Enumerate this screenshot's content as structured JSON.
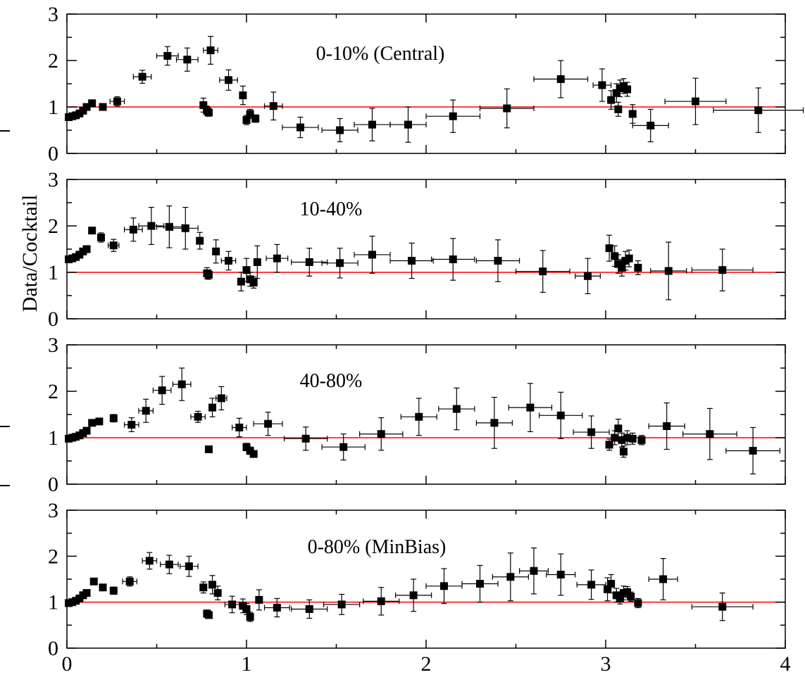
{
  "figure": {
    "ylabel": "Data/Cocktail"
  },
  "chart_data": [
    {
      "type": "scatter",
      "title": "0-10% (Central)",
      "xlim": [
        0,
        4
      ],
      "ylim": [
        0,
        3
      ],
      "yticks": [
        "0",
        "1",
        "2",
        "3"
      ],
      "reference_line": 1,
      "reference_color": "#ff0000",
      "points": [
        [
          0.01,
          0.78,
          0.04
        ],
        [
          0.03,
          0.8,
          0.04
        ],
        [
          0.05,
          0.82,
          0.04
        ],
        [
          0.07,
          0.86,
          0.04
        ],
        [
          0.09,
          0.92,
          0.05
        ],
        [
          0.11,
          1.0,
          0.06
        ],
        [
          0.14,
          1.08,
          0.06
        ],
        [
          0.2,
          1.0,
          0.07
        ],
        [
          0.28,
          1.12,
          0.1
        ],
        [
          0.42,
          1.65,
          0.14
        ],
        [
          0.56,
          2.1,
          0.2
        ],
        [
          0.67,
          2.02,
          0.25
        ],
        [
          0.8,
          2.22,
          0.3
        ],
        [
          0.76,
          1.04,
          0.15
        ],
        [
          0.78,
          0.92,
          0.1
        ],
        [
          0.79,
          0.88,
          0.08
        ],
        [
          0.9,
          1.58,
          0.22
        ],
        [
          0.98,
          1.25,
          0.2
        ],
        [
          1.0,
          0.72,
          0.1
        ],
        [
          1.02,
          0.85,
          0.1
        ],
        [
          1.05,
          0.75,
          0.08
        ],
        [
          1.15,
          1.02,
          0.3
        ],
        [
          1.3,
          0.56,
          0.22
        ],
        [
          1.52,
          0.5,
          0.25
        ],
        [
          1.7,
          0.62,
          0.35
        ],
        [
          1.9,
          0.62,
          0.38
        ],
        [
          2.15,
          0.8,
          0.35
        ],
        [
          2.45,
          0.97,
          0.42
        ],
        [
          2.75,
          1.6,
          0.4
        ],
        [
          2.98,
          1.47,
          0.35
        ],
        [
          3.03,
          1.15,
          0.2
        ],
        [
          3.06,
          1.3,
          0.2
        ],
        [
          3.08,
          1.4,
          0.18
        ],
        [
          3.1,
          1.45,
          0.16
        ],
        [
          3.12,
          1.38,
          0.15
        ],
        [
          3.07,
          0.95,
          0.15
        ],
        [
          3.15,
          0.85,
          0.2
        ],
        [
          3.25,
          0.6,
          0.35
        ],
        [
          3.5,
          1.12,
          0.5
        ],
        [
          3.85,
          0.93,
          0.48
        ]
      ],
      "xerr": [
        0,
        0,
        0,
        0,
        0,
        0,
        0,
        0,
        0.04,
        0.05,
        0.06,
        0.06,
        0.04,
        0,
        0,
        0,
        0.05,
        0,
        0,
        0,
        0,
        0.05,
        0.1,
        0.1,
        0.1,
        0.1,
        0.15,
        0.15,
        0.15,
        0.05,
        0,
        0,
        0,
        0,
        0,
        0,
        0,
        0.1,
        0.17,
        0.25
      ]
    },
    {
      "type": "scatter",
      "title": "10-40%",
      "xlim": [
        0,
        4
      ],
      "ylim": [
        0,
        3
      ],
      "yticks": [
        "0",
        "1",
        "2",
        "3"
      ],
      "reference_line": 1,
      "reference_color": "#ff0000",
      "points": [
        [
          0.01,
          1.28,
          0.04
        ],
        [
          0.03,
          1.3,
          0.04
        ],
        [
          0.05,
          1.33,
          0.04
        ],
        [
          0.07,
          1.38,
          0.05
        ],
        [
          0.09,
          1.45,
          0.05
        ],
        [
          0.11,
          1.5,
          0.06
        ],
        [
          0.14,
          1.9,
          0.07
        ],
        [
          0.19,
          1.75,
          0.1
        ],
        [
          0.26,
          1.58,
          0.13
        ],
        [
          0.37,
          1.92,
          0.25
        ],
        [
          0.47,
          2.0,
          0.4
        ],
        [
          0.57,
          1.98,
          0.45
        ],
        [
          0.66,
          1.95,
          0.45
        ],
        [
          0.74,
          1.68,
          0.18
        ],
        [
          0.78,
          0.98,
          0.12
        ],
        [
          0.79,
          0.95,
          0.1
        ],
        [
          0.83,
          1.45,
          0.25
        ],
        [
          0.9,
          1.25,
          0.2
        ],
        [
          0.97,
          0.8,
          0.2
        ],
        [
          1.0,
          1.05,
          0.25
        ],
        [
          1.02,
          0.85,
          0.15
        ],
        [
          1.04,
          0.78,
          0.12
        ],
        [
          1.06,
          1.22,
          0.35
        ],
        [
          1.17,
          1.3,
          0.3
        ],
        [
          1.35,
          1.22,
          0.3
        ],
        [
          1.52,
          1.2,
          0.32
        ],
        [
          1.7,
          1.38,
          0.4
        ],
        [
          1.92,
          1.25,
          0.38
        ],
        [
          2.15,
          1.28,
          0.45
        ],
        [
          2.4,
          1.25,
          0.45
        ],
        [
          2.65,
          1.02,
          0.45
        ],
        [
          2.9,
          0.92,
          0.38
        ],
        [
          3.02,
          1.52,
          0.28
        ],
        [
          3.05,
          1.35,
          0.22
        ],
        [
          3.07,
          1.18,
          0.2
        ],
        [
          3.09,
          1.1,
          0.18
        ],
        [
          3.11,
          1.25,
          0.2
        ],
        [
          3.13,
          1.3,
          0.18
        ],
        [
          3.18,
          1.1,
          0.15
        ],
        [
          3.35,
          1.03,
          0.62
        ],
        [
          3.65,
          1.05,
          0.45
        ]
      ],
      "xerr": [
        0,
        0,
        0,
        0,
        0,
        0,
        0,
        0,
        0.03,
        0.05,
        0.07,
        0.07,
        0.07,
        0,
        0,
        0,
        0,
        0.04,
        0,
        0,
        0,
        0,
        0,
        0.06,
        0.1,
        0.1,
        0.1,
        0.12,
        0.12,
        0.12,
        0.15,
        0.07,
        0,
        0,
        0,
        0,
        0,
        0,
        0,
        0.1,
        0.17
      ]
    },
    {
      "type": "scatter",
      "title": "40-80%",
      "xlim": [
        0,
        4
      ],
      "ylim": [
        0,
        3
      ],
      "yticks": [
        "0",
        "1",
        "2",
        "3"
      ],
      "reference_line": 1,
      "reference_color": "#ff0000",
      "points": [
        [
          0.01,
          0.98,
          0.04
        ],
        [
          0.03,
          1.0,
          0.04
        ],
        [
          0.05,
          1.02,
          0.04
        ],
        [
          0.07,
          1.05,
          0.04
        ],
        [
          0.09,
          1.1,
          0.05
        ],
        [
          0.11,
          1.15,
          0.05
        ],
        [
          0.14,
          1.32,
          0.06
        ],
        [
          0.18,
          1.35,
          0.06
        ],
        [
          0.26,
          1.42,
          0.08
        ],
        [
          0.36,
          1.28,
          0.15
        ],
        [
          0.44,
          1.58,
          0.25
        ],
        [
          0.53,
          2.02,
          0.3
        ],
        [
          0.64,
          2.15,
          0.35
        ],
        [
          0.73,
          1.45,
          0.12
        ],
        [
          0.79,
          0.75,
          0.06
        ],
        [
          0.81,
          1.65,
          0.2
        ],
        [
          0.86,
          1.85,
          0.25
        ],
        [
          0.96,
          1.22,
          0.2
        ],
        [
          1.0,
          0.8,
          0.08
        ],
        [
          1.02,
          0.72,
          0.08
        ],
        [
          1.04,
          0.65,
          0.06
        ],
        [
          1.12,
          1.3,
          0.25
        ],
        [
          1.33,
          0.98,
          0.25
        ],
        [
          1.54,
          0.8,
          0.28
        ],
        [
          1.75,
          1.08,
          0.35
        ],
        [
          1.96,
          1.45,
          0.4
        ],
        [
          2.17,
          1.62,
          0.45
        ],
        [
          2.38,
          1.32,
          0.55
        ],
        [
          2.58,
          1.65,
          0.52
        ],
        [
          2.75,
          1.48,
          0.5
        ],
        [
          2.92,
          1.12,
          0.35
        ],
        [
          3.02,
          0.85,
          0.12
        ],
        [
          3.05,
          1.0,
          0.15
        ],
        [
          3.07,
          1.2,
          0.2
        ],
        [
          3.09,
          0.95,
          0.15
        ],
        [
          3.1,
          0.7,
          0.12
        ],
        [
          3.12,
          1.0,
          0.15
        ],
        [
          3.15,
          0.98,
          0.12
        ],
        [
          3.2,
          0.95,
          0.1
        ],
        [
          3.34,
          1.25,
          0.5
        ],
        [
          3.58,
          1.08,
          0.55
        ],
        [
          3.82,
          0.72,
          0.5
        ]
      ],
      "xerr": [
        0,
        0,
        0,
        0,
        0,
        0,
        0,
        0,
        0,
        0.04,
        0.04,
        0.05,
        0.05,
        0.04,
        0,
        0,
        0.03,
        0.04,
        0,
        0,
        0,
        0.08,
        0.12,
        0.12,
        0.12,
        0.1,
        0.1,
        0.1,
        0.12,
        0.12,
        0.1,
        0,
        0,
        0,
        0,
        0,
        0,
        0,
        0,
        0.1,
        0.15,
        0.15
      ]
    },
    {
      "type": "scatter",
      "title": "0-80% (MinBias)",
      "xlim": [
        0,
        4
      ],
      "ylim": [
        0,
        3
      ],
      "yticks": [
        "0",
        "1",
        "2",
        "3"
      ],
      "xticks": [
        "0",
        "1",
        "2",
        "3",
        "4"
      ],
      "reference_line": 1,
      "reference_color": "#ff0000",
      "points": [
        [
          0.01,
          0.98,
          0.04
        ],
        [
          0.03,
          1.0,
          0.04
        ],
        [
          0.05,
          1.03,
          0.04
        ],
        [
          0.07,
          1.08,
          0.04
        ],
        [
          0.09,
          1.15,
          0.05
        ],
        [
          0.11,
          1.2,
          0.05
        ],
        [
          0.15,
          1.45,
          0.06
        ],
        [
          0.2,
          1.32,
          0.06
        ],
        [
          0.26,
          1.25,
          0.08
        ],
        [
          0.35,
          1.45,
          0.1
        ],
        [
          0.46,
          1.9,
          0.18
        ],
        [
          0.57,
          1.82,
          0.2
        ],
        [
          0.68,
          1.78,
          0.22
        ],
        [
          0.76,
          1.32,
          0.12
        ],
        [
          0.78,
          0.75,
          0.08
        ],
        [
          0.79,
          0.72,
          0.07
        ],
        [
          0.81,
          1.38,
          0.2
        ],
        [
          0.84,
          1.2,
          0.15
        ],
        [
          0.92,
          0.95,
          0.18
        ],
        [
          0.98,
          0.92,
          0.15
        ],
        [
          1.0,
          0.85,
          0.12
        ],
        [
          1.02,
          0.68,
          0.1
        ],
        [
          1.07,
          1.05,
          0.22
        ],
        [
          1.17,
          0.88,
          0.2
        ],
        [
          1.35,
          0.85,
          0.2
        ],
        [
          1.53,
          0.95,
          0.22
        ],
        [
          1.75,
          1.02,
          0.3
        ],
        [
          1.93,
          1.15,
          0.35
        ],
        [
          2.1,
          1.35,
          0.38
        ],
        [
          2.3,
          1.4,
          0.4
        ],
        [
          2.47,
          1.55,
          0.52
        ],
        [
          2.6,
          1.68,
          0.5
        ],
        [
          2.75,
          1.6,
          0.45
        ],
        [
          2.92,
          1.38,
          0.32
        ],
        [
          3.01,
          1.28,
          0.25
        ],
        [
          3.03,
          1.4,
          0.2
        ],
        [
          3.06,
          1.15,
          0.15
        ],
        [
          3.08,
          1.08,
          0.12
        ],
        [
          3.1,
          1.2,
          0.15
        ],
        [
          3.12,
          1.22,
          0.12
        ],
        [
          3.14,
          1.12,
          0.1
        ],
        [
          3.18,
          0.98,
          0.1
        ],
        [
          3.32,
          1.5,
          0.45
        ],
        [
          3.65,
          0.9,
          0.3
        ]
      ],
      "xerr": [
        0,
        0,
        0,
        0,
        0,
        0,
        0,
        0,
        0,
        0.04,
        0.04,
        0.05,
        0.05,
        0,
        0,
        0,
        0,
        0,
        0.04,
        0,
        0,
        0,
        0,
        0.07,
        0.1,
        0.1,
        0.1,
        0.1,
        0.1,
        0.1,
        0.1,
        0.08,
        0.08,
        0.08,
        0,
        0,
        0,
        0,
        0,
        0,
        0,
        0,
        0.08,
        0.17
      ]
    }
  ]
}
